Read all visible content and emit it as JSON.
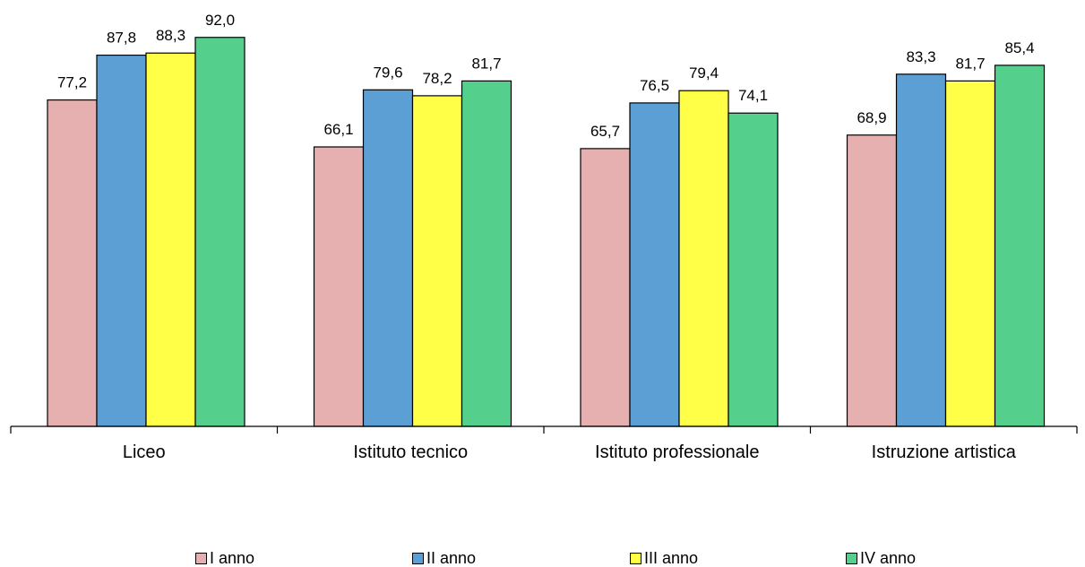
{
  "chart_data": {
    "type": "bar",
    "categories": [
      "Liceo",
      "Istituto tecnico",
      "Istituto professionale",
      "Istruzione artistica"
    ],
    "series": [
      {
        "name": "I anno",
        "color": "#E6B0B0",
        "values": [
          77.2,
          66.1,
          65.7,
          68.9
        ],
        "labels": [
          "77,2",
          "66,1",
          "65,7",
          "68,9"
        ]
      },
      {
        "name": "II anno",
        "color": "#5B9FD4",
        "values": [
          87.8,
          79.6,
          76.5,
          83.3
        ],
        "labels": [
          "87,8",
          "79,6",
          "76,5",
          "83,3"
        ]
      },
      {
        "name": "III anno",
        "color": "#FFFF47",
        "values": [
          88.3,
          78.2,
          79.4,
          81.7
        ],
        "labels": [
          "88,3",
          "78,2",
          "79,4",
          "81,7"
        ]
      },
      {
        "name": "IV anno",
        "color": "#55D08C",
        "values": [
          92.0,
          81.7,
          74.1,
          85.4
        ],
        "labels": [
          "92,0",
          "81,7",
          "74,1",
          "85,4"
        ]
      }
    ],
    "ylim": [
      0,
      100
    ],
    "grid": false,
    "legend": "bottom"
  }
}
